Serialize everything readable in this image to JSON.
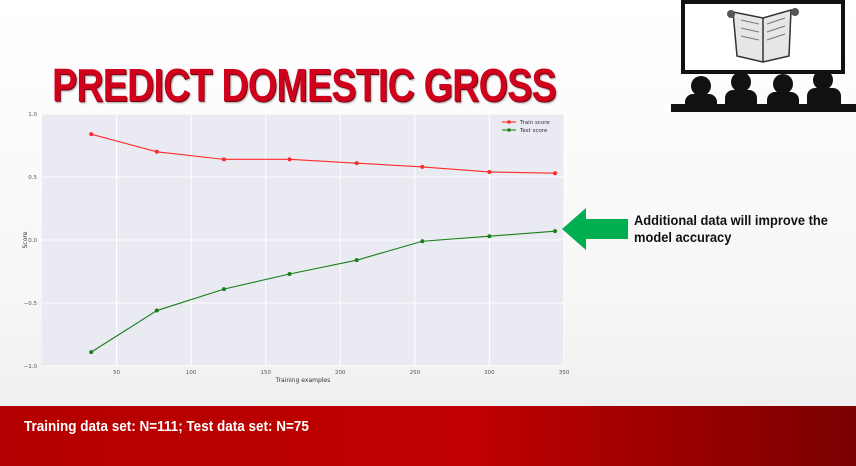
{
  "title": "PREDICT DOMESTIC GROSS",
  "annotation": "Additional data will improve the model accuracy",
  "footer": "Training data set: N=111; Test data set: N=75",
  "colors": {
    "title": "#d0021b",
    "arrow": "#00b050",
    "footer": "#c00000",
    "train": "#ff2a2a",
    "test": "#1a7f1a"
  },
  "chart_data": {
    "type": "line",
    "title": "",
    "xlabel": "Training examples",
    "ylabel": "Score",
    "xlim": [
      0,
      350
    ],
    "ylim": [
      -1.0,
      1.0
    ],
    "xticks": [
      50,
      100,
      150,
      200,
      250,
      300,
      350
    ],
    "yticks": [
      -1.0,
      -0.5,
      0.0,
      0.5,
      1.0
    ],
    "ytick_labels": [
      "−1.0",
      "−0.5",
      "0.0",
      "0.5",
      "1.0"
    ],
    "grid": true,
    "legend_position": "top-right",
    "x": [
      33,
      77,
      122,
      166,
      211,
      255,
      300,
      344
    ],
    "series": [
      {
        "name": "Train score",
        "color": "#ff2a2a",
        "values": [
          0.84,
          0.7,
          0.64,
          0.64,
          0.61,
          0.58,
          0.54,
          0.53
        ]
      },
      {
        "name": "Test score",
        "color": "#1a7f1a",
        "values": [
          -0.89,
          -0.56,
          -0.39,
          -0.27,
          -0.16,
          -0.01,
          0.03,
          0.07
        ]
      }
    ]
  }
}
